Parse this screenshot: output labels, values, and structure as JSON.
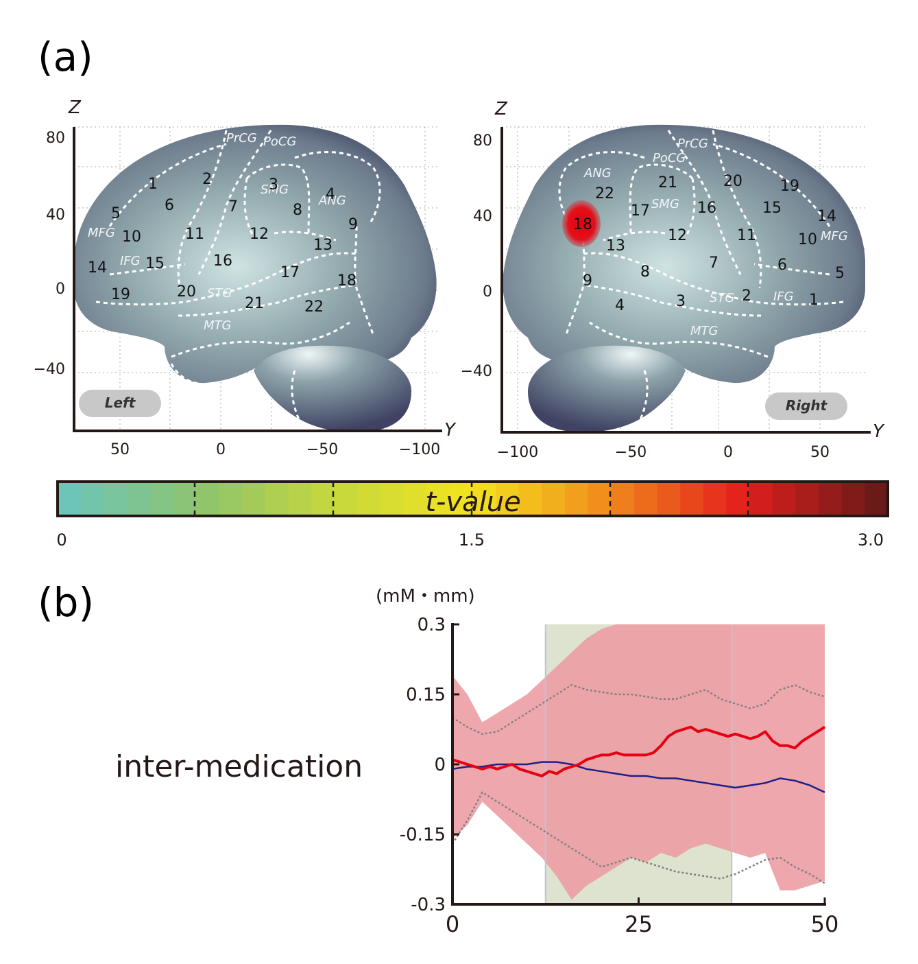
{
  "panel_a": {
    "label": "(a)",
    "left_brain": {
      "hemisphere_label": "Left",
      "z_axis_label": "Z",
      "y_axis_label": "Y",
      "z_ticks": [
        "80",
        "40",
        "0",
        "−40"
      ],
      "y_ticks": [
        "50",
        "0",
        "−50",
        "−100"
      ],
      "regions": [
        "1",
        "2",
        "3",
        "4",
        "5",
        "6",
        "7",
        "8",
        "9",
        "10",
        "11",
        "12",
        "13",
        "14",
        "15",
        "16",
        "17",
        "18",
        "19",
        "20",
        "21",
        "22"
      ],
      "gyrus_labels": [
        "PrCG",
        "PoCG",
        "SMG",
        "ANG",
        "MFG",
        "IFG",
        "STG",
        "MTG"
      ]
    },
    "right_brain": {
      "hemisphere_label": "Right",
      "z_axis_label": "Z",
      "y_axis_label": "Y",
      "z_ticks": [
        "80",
        "40",
        "0",
        "−40"
      ],
      "y_ticks": [
        "−100",
        "−50",
        "0",
        "50"
      ],
      "regions": [
        "1",
        "2",
        "3",
        "4",
        "5",
        "6",
        "7",
        "8",
        "9",
        "10",
        "11",
        "12",
        "13",
        "14",
        "15",
        "16",
        "17",
        "18",
        "19",
        "20",
        "21",
        "22"
      ],
      "gyrus_labels": [
        "PrCG",
        "PoCG",
        "ANG",
        "SMG",
        "MFG",
        "IFG",
        "STG",
        "MTG"
      ],
      "highlighted_region": "18"
    },
    "colorbar": {
      "title": "t-value",
      "min_label": "0",
      "mid_label": "1.5",
      "max_label": "3.0",
      "range": [
        0,
        3.0
      ],
      "colors_low_to_high": [
        "#6cc5b8",
        "#8fc46c",
        "#c8d83c",
        "#f3e41e",
        "#f08a1c",
        "#e3201c",
        "#6b1a1a"
      ]
    }
  },
  "panel_b": {
    "label": "(b)",
    "row_label": "inter-medication",
    "unit_label": "(mM・mm)",
    "chart_data": {
      "type": "line",
      "x_ticks": [
        "0",
        "25",
        "50"
      ],
      "y_ticks": [
        "0.3",
        "0.15",
        "0",
        "-0.15",
        "-0.3"
      ],
      "xlim": [
        0,
        50
      ],
      "ylim": [
        -0.3,
        0.3
      ],
      "shaded_interval": [
        12.5,
        37.5
      ],
      "colors": {
        "red": "#e60012",
        "blue": "#1d2088",
        "band": "#eba0a6",
        "dotted": "#808080",
        "shade": "#dde3cf"
      },
      "series": [
        {
          "x": [
            0,
            1,
            2,
            3,
            4,
            5,
            6,
            7,
            8,
            9,
            10,
            11,
            12,
            13,
            14,
            15,
            16,
            17,
            18,
            19,
            20,
            21,
            22,
            23,
            24,
            25,
            26,
            27,
            28,
            29,
            30,
            31,
            32,
            33,
            34,
            35,
            36,
            37,
            38,
            39,
            40,
            41,
            42,
            43,
            44,
            45,
            46,
            47,
            48,
            49,
            50
          ],
          "y": [
            0.01,
            0.005,
            0.0,
            -0.005,
            -0.01,
            -0.005,
            -0.01,
            -0.005,
            0.0,
            -0.01,
            -0.015,
            -0.02,
            -0.025,
            -0.015,
            -0.02,
            -0.01,
            -0.005,
            0.0,
            0.01,
            0.015,
            0.02,
            0.02,
            0.025,
            0.02,
            0.02,
            0.02,
            0.02,
            0.025,
            0.04,
            0.06,
            0.07,
            0.075,
            0.08,
            0.07,
            0.075,
            0.07,
            0.065,
            0.06,
            0.065,
            0.06,
            0.055,
            0.06,
            0.07,
            0.05,
            0.04,
            0.04,
            0.035,
            0.05,
            0.06,
            0.07,
            0.08
          ]
        },
        {
          "x": [
            0,
            2,
            4,
            6,
            8,
            10,
            12,
            14,
            16,
            18,
            20,
            22,
            24,
            26,
            28,
            30,
            32,
            34,
            36,
            38,
            40,
            42,
            44,
            46,
            48,
            50
          ],
          "y": [
            -0.01,
            -0.005,
            -0.005,
            0.0,
            0.0,
            0.0,
            0.005,
            0.005,
            0.0,
            -0.01,
            -0.015,
            -0.02,
            -0.025,
            -0.025,
            -0.03,
            -0.03,
            -0.035,
            -0.04,
            -0.045,
            -0.05,
            -0.045,
            -0.04,
            -0.03,
            -0.035,
            -0.045,
            -0.06
          ]
        },
        {
          "x": [
            0,
            2,
            4,
            6,
            8,
            10,
            12,
            14,
            16,
            18,
            20,
            22,
            24,
            26,
            28,
            30,
            32,
            34,
            36,
            38,
            40,
            42,
            44,
            46,
            48,
            50
          ],
          "y": [
            0.1,
            0.08,
            0.065,
            0.07,
            0.09,
            0.11,
            0.13,
            0.15,
            0.17,
            0.16,
            0.155,
            0.15,
            0.15,
            0.145,
            0.14,
            0.14,
            0.15,
            0.16,
            0.14,
            0.13,
            0.12,
            0.13,
            0.16,
            0.17,
            0.155,
            0.145
          ]
        },
        {
          "x": [
            0,
            2,
            4,
            6,
            8,
            10,
            12,
            14,
            16,
            18,
            20,
            22,
            24,
            26,
            28,
            30,
            32,
            34,
            36,
            38,
            40,
            42,
            44,
            46,
            48,
            50
          ],
          "y": [
            -0.17,
            -0.12,
            -0.06,
            -0.08,
            -0.1,
            -0.12,
            -0.14,
            -0.16,
            -0.18,
            -0.2,
            -0.22,
            -0.21,
            -0.2,
            -0.21,
            -0.22,
            -0.23,
            -0.235,
            -0.24,
            -0.245,
            -0.235,
            -0.22,
            -0.205,
            -0.2,
            -0.22,
            -0.235,
            -0.255
          ]
        }
      ],
      "band_upper": [
        0.19,
        0.15,
        0.09,
        0.11,
        0.13,
        0.15,
        0.18,
        0.21,
        0.24,
        0.27,
        0.29,
        0.3,
        0.3,
        0.3,
        0.3,
        0.3,
        0.3,
        0.3,
        0.3,
        0.3,
        0.3,
        0.3,
        0.3,
        0.3,
        0.3,
        0.3
      ],
      "band_lower": [
        -0.16,
        -0.13,
        -0.08,
        -0.11,
        -0.14,
        -0.17,
        -0.2,
        -0.24,
        -0.29,
        -0.26,
        -0.24,
        -0.22,
        -0.2,
        -0.21,
        -0.19,
        -0.2,
        -0.18,
        -0.17,
        -0.18,
        -0.19,
        -0.2,
        -0.19,
        -0.27,
        -0.27,
        -0.26,
        -0.25
      ]
    }
  }
}
